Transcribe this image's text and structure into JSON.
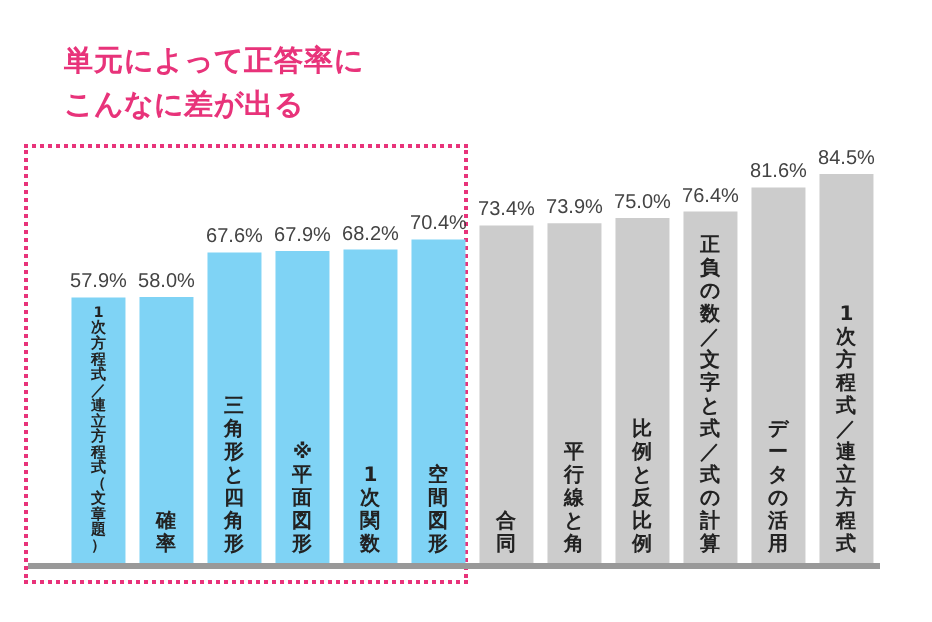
{
  "chart_data": {
    "type": "bar",
    "title": "単元によって正答率にこんなに差が出る",
    "categories": [
      "1次方程式／連立方程式（文章題）",
      "確率",
      "三角形と四角形",
      "※平面図形",
      "1次関数",
      "空間図形",
      "合同",
      "平行線と角",
      "比例と反比例",
      "正負の数／文字と式／式の計算",
      "データの活用",
      "1次方程式／連立方程式"
    ],
    "values": [
      57.9,
      58.0,
      67.6,
      67.9,
      68.2,
      70.4,
      73.4,
      73.9,
      75.0,
      76.4,
      81.6,
      84.5
    ],
    "colors": [
      "#7fd3f5",
      "#7fd3f5",
      "#7fd3f5",
      "#7fd3f5",
      "#7fd3f5",
      "#7fd3f5",
      "#cccccc",
      "#cccccc",
      "#cccccc",
      "#cccccc",
      "#cccccc",
      "#cccccc"
    ],
    "value_labels": [
      "57.9%",
      "58.0%",
      "67.6%",
      "67.9%",
      "68.2%",
      "70.4%",
      "73.4%",
      "73.9%",
      "75.0%",
      "76.4%",
      "81.6%",
      "84.5%"
    ]
  }
}
